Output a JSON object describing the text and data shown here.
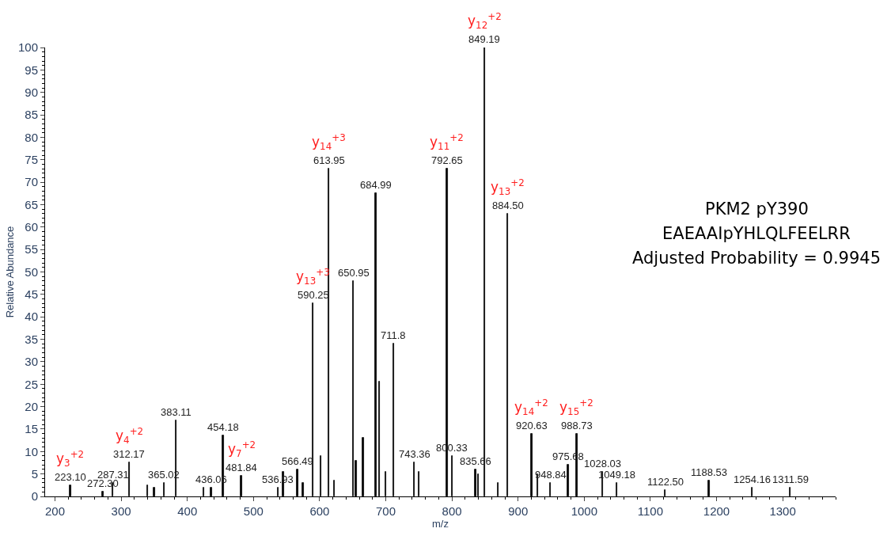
{
  "chart_data": {
    "type": "bar",
    "xlabel": "m/z",
    "ylabel": "Relative Abundance",
    "x": [
      223.1,
      272.3,
      287.31,
      312.17,
      340,
      350,
      365.02,
      383.11,
      425,
      436.06,
      454.18,
      481.84,
      536.93,
      545,
      566.49,
      575,
      590.25,
      602,
      613.95,
      622,
      650.95,
      655,
      666,
      684.99,
      690,
      700,
      711.8,
      743.36,
      750,
      792.65,
      800.33,
      835.66,
      840,
      849.19,
      870,
      884.5,
      920.63,
      930,
      948.84,
      975.68,
      988.73,
      1028.03,
      1049.18,
      1122.5,
      1188.53,
      1254.16,
      1311.59
    ],
    "values": [
      2.5,
      1,
      3,
      7.5,
      2.5,
      2,
      3,
      17,
      2,
      2,
      13.5,
      4.5,
      2,
      5.5,
      6,
      3,
      43,
      9,
      73,
      3.5,
      48,
      8,
      13,
      67.5,
      25.5,
      5.5,
      34,
      7.5,
      5.5,
      73,
      9,
      6,
      5,
      100,
      3,
      63,
      14,
      5,
      3,
      7,
      14,
      5.5,
      3,
      1.5,
      3.5,
      2,
      2
    ],
    "color": "#000000",
    "xlim": [
      185,
      1380
    ],
    "xticks": [
      200,
      300,
      400,
      500,
      600,
      700,
      800,
      900,
      1000,
      1100,
      1200,
      1300
    ],
    "ylim": [
      0,
      100
    ],
    "yticks": [
      0,
      5,
      10,
      15,
      20,
      25,
      30,
      35,
      40,
      45,
      50,
      55,
      60,
      65,
      70,
      75,
      80,
      85,
      90,
      95,
      100
    ],
    "annotations": [
      {
        "text": "223.10",
        "x": 223.1,
        "y": 2.5
      },
      {
        "text": "272.30",
        "x": 272.3,
        "y": 1
      },
      {
        "text": "287.31",
        "x": 287.31,
        "y": 3
      },
      {
        "text": "312.17",
        "x": 312.17,
        "y": 7.5
      },
      {
        "text": "365.02",
        "x": 365.02,
        "y": 3
      },
      {
        "text": "383.11",
        "x": 383.11,
        "y": 17
      },
      {
        "text": "436.06",
        "x": 436.06,
        "y": 2
      },
      {
        "text": "454.18",
        "x": 454.18,
        "y": 13.5
      },
      {
        "text": "481.84",
        "x": 481.84,
        "y": 4.5
      },
      {
        "text": "536.93",
        "x": 536.93,
        "y": 2
      },
      {
        "text": "566.49",
        "x": 566.49,
        "y": 6
      },
      {
        "text": "590.25",
        "x": 590.25,
        "y": 43
      },
      {
        "text": "613.95",
        "x": 613.95,
        "y": 73
      },
      {
        "text": "650.95",
        "x": 650.95,
        "y": 48
      },
      {
        "text": "684.99",
        "x": 684.99,
        "y": 67.5
      },
      {
        "text": "711.8",
        "x": 711.8,
        "y": 34
      },
      {
        "text": "743.36",
        "x": 743.36,
        "y": 7.5
      },
      {
        "text": "792.65",
        "x": 792.65,
        "y": 73
      },
      {
        "text": "800.33",
        "x": 800.33,
        "y": 9
      },
      {
        "text": "835.66",
        "x": 835.66,
        "y": 6
      },
      {
        "text": "849.19",
        "x": 849.19,
        "y": 100
      },
      {
        "text": "884.50",
        "x": 884.5,
        "y": 63
      },
      {
        "text": "920.63",
        "x": 920.63,
        "y": 14
      },
      {
        "text": "948.84",
        "x": 948.84,
        "y": 3
      },
      {
        "text": "975.68",
        "x": 975.68,
        "y": 7
      },
      {
        "text": "988.73",
        "x": 988.73,
        "y": 14
      },
      {
        "text": "1028.03",
        "x": 1028.03,
        "y": 5.5
      },
      {
        "text": "1049.18",
        "x": 1049.18,
        "y": 3
      },
      {
        "text": "1122.50",
        "x": 1122.5,
        "y": 1.5
      },
      {
        "text": "1188.53",
        "x": 1188.53,
        "y": 3.5
      },
      {
        "text": "1254.16",
        "x": 1254.16,
        "y": 2
      },
      {
        "text": "1311.59",
        "x": 1311.59,
        "y": 2
      },
      {
        "text": "y$_{3}$$^{+2}$",
        "x": 223.1,
        "y": 2.5
      },
      {
        "text": "y$_{4}$$^{+2}$",
        "x": 312.17,
        "y": 7.5
      },
      {
        "text": "y$_{7}$$^{+2}$",
        "x": 481.84,
        "y": 4.5
      },
      {
        "text": "y$_{13}$$^{+3}$",
        "x": 590.25,
        "y": 43
      },
      {
        "text": "y$_{14}$$^{+3}$",
        "x": 613.95,
        "y": 73
      },
      {
        "text": "y$_{11}$$^{+2}$",
        "x": 792.65,
        "y": 73
      },
      {
        "text": "y$_{12}$$^{+2}$",
        "x": 849.19,
        "y": 100
      },
      {
        "text": "y$_{13}$$^{+2}$",
        "x": 884.5,
        "y": 63
      },
      {
        "text": "y$_{14}$$^{+2}$",
        "x": 920.63,
        "y": 14
      },
      {
        "text": "y$_{15}$$^{+2}$",
        "x": 988.73,
        "y": 14
      },
      "PKM2 pY390",
      "EAEAAIpYHLQLFEELRR",
      "Adjusted Probability = 0.9945"
    ]
  }
}
